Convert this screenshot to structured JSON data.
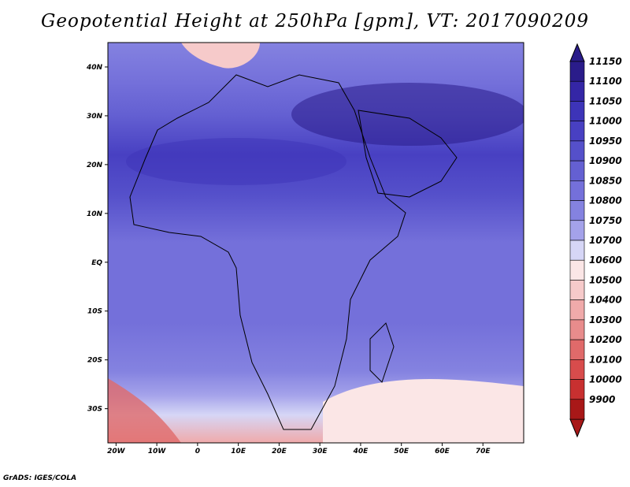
{
  "title": "Geopotential Height at 250hPa [gpm], VT: 2017090209",
  "footer": "GrADS: IGES/COLA",
  "map": {
    "lon_range": [
      -22,
      80
    ],
    "lat_range": [
      -37,
      45
    ],
    "x_ticks": [
      {
        "value": -20,
        "label": "20W"
      },
      {
        "value": -10,
        "label": "10W"
      },
      {
        "value": 0,
        "label": "0"
      },
      {
        "value": 10,
        "label": "10E"
      },
      {
        "value": 20,
        "label": "20E"
      },
      {
        "value": 30,
        "label": "30E"
      },
      {
        "value": 40,
        "label": "40E"
      },
      {
        "value": 50,
        "label": "50E"
      },
      {
        "value": 60,
        "label": "60E"
      },
      {
        "value": 70,
        "label": "70E"
      }
    ],
    "y_ticks": [
      {
        "value": 40,
        "label": "40N"
      },
      {
        "value": 30,
        "label": "30N"
      },
      {
        "value": 20,
        "label": "20N"
      },
      {
        "value": 10,
        "label": "10N"
      },
      {
        "value": 0,
        "label": "EQ"
      },
      {
        "value": -10,
        "label": "10S"
      },
      {
        "value": -20,
        "label": "20S"
      },
      {
        "value": -30,
        "label": "30S"
      }
    ]
  },
  "colorbar": {
    "levels": [
      "11150",
      "11100",
      "11050",
      "11000",
      "10950",
      "10900",
      "10850",
      "10800",
      "10750",
      "10700",
      "10600",
      "10500",
      "10400",
      "10300",
      "10200",
      "10100",
      "10000",
      "9900"
    ],
    "colors": [
      "#2a1c8a",
      "#3426a6",
      "#3d34b8",
      "#4840c2",
      "#5550ca",
      "#6460d2",
      "#7470da",
      "#8482e0",
      "#a4a2ea",
      "#d6d6f6",
      "#fbe6e6",
      "#f6caca",
      "#f0aaaa",
      "#e88c8c",
      "#e06a6a",
      "#d84c4c",
      "#c83030",
      "#a81818"
    ]
  }
}
